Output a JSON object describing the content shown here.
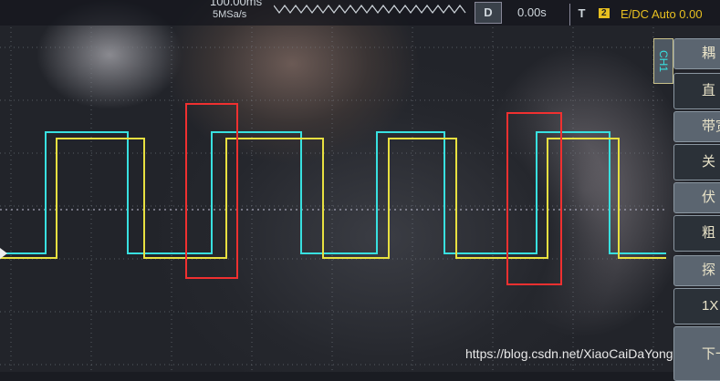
{
  "top": {
    "timebase": "100.00ms",
    "sample_rate": "5MSa/s",
    "delay_label": "D",
    "delay_value": "0.00s",
    "trigger_label": "T",
    "trigger_source": "2",
    "trigger_mode": "E/DC Auto 0.00"
  },
  "channel_tab": "CH1",
  "menu": [
    "耦",
    "直",
    "带宽",
    "关",
    "伏",
    "粗",
    "探",
    "1X",
    "下一"
  ],
  "watermark": "https://blog.csdn.net/XiaoCaiDaYong",
  "colors": {
    "ch1": "#38e0e0",
    "ch2": "#e8e040",
    "highlight": "#f03030",
    "trigger_text": "#e8c020"
  }
}
